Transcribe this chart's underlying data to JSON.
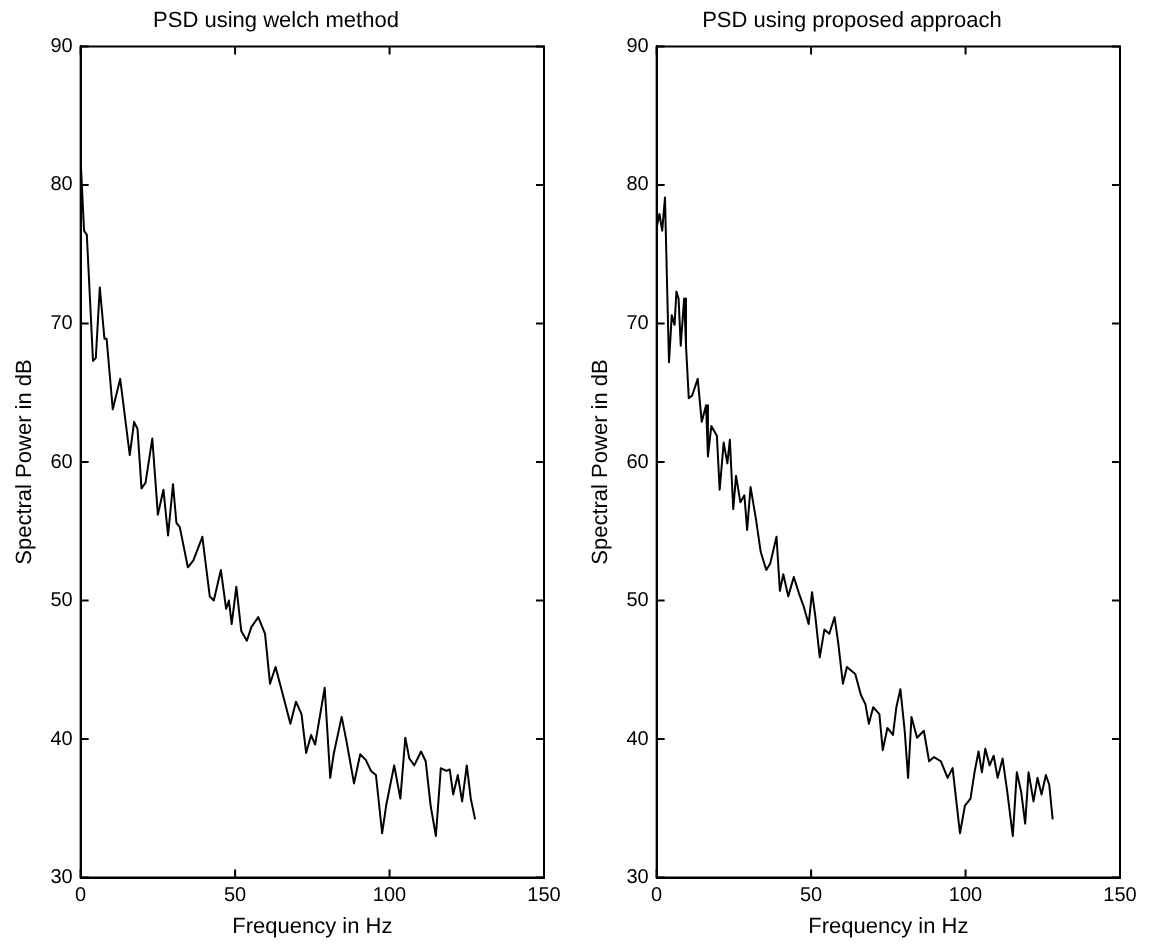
{
  "chart_data": [
    {
      "type": "line",
      "title": "PSD using welch method",
      "xlabel": "Frequency in Hz",
      "ylabel": "Spectral Power in dB",
      "color": "#000000",
      "xlim": [
        0,
        150
      ],
      "ylim": [
        30,
        90
      ],
      "xticks": [
        0,
        50,
        100,
        150
      ],
      "yticks": [
        30,
        40,
        50,
        60,
        70,
        80,
        90
      ],
      "x": [
        0,
        1.1,
        2,
        4,
        4.9,
        6.2,
        7.7,
        8.4,
        10.4,
        12.8,
        15.9,
        17.3,
        18.4,
        19.7,
        21,
        23.2,
        25,
        26.8,
        28.3,
        29.9,
        31,
        32.1,
        34.7,
        36.5,
        39.4,
        41.8,
        43.1,
        45.4,
        47.1,
        48,
        48.9,
        50.4,
        52,
        53.8,
        55.3,
        57.5,
        59.7,
        61.3,
        63.1,
        65.7,
        67.9,
        69.7,
        71.5,
        73,
        74.6,
        75.9,
        79,
        80.8,
        81.9,
        84.5,
        86.1,
        88.5,
        90.5,
        92.3,
        94,
        95.6,
        97.6,
        98.9,
        101.5,
        103.5,
        105.1,
        106.4,
        108,
        110.2,
        111.7,
        113.3,
        115,
        116.6,
        118.4,
        119.5,
        120.6,
        122.1,
        123.5,
        125,
        126.3,
        127.7
      ],
      "values": [
        81.8,
        76.7,
        76.4,
        67.3,
        67.5,
        72.6,
        68.9,
        68.9,
        63.8,
        66,
        60.5,
        62.9,
        62.4,
        58.1,
        58.5,
        61.7,
        56.2,
        58,
        54.7,
        58.4,
        55.6,
        55.3,
        52.4,
        52.9,
        54.6,
        50.3,
        50,
        52.2,
        49.4,
        50,
        48.3,
        51,
        47.8,
        47.1,
        48.1,
        48.8,
        47.6,
        44,
        45.2,
        43,
        41.1,
        42.7,
        41.8,
        39,
        40.3,
        39.6,
        43.7,
        37.2,
        38.9,
        41.6,
        39.8,
        36.8,
        38.9,
        38.5,
        37.7,
        37.4,
        33.2,
        35.2,
        38.1,
        35.7,
        40.1,
        38.6,
        38.1,
        39.1,
        38.4,
        35.2,
        33,
        37.9,
        37.7,
        37.8,
        36,
        37.4,
        35.5,
        38.1,
        35.7,
        34.2
      ]
    },
    {
      "type": "line",
      "title": "PSD using proposed approach",
      "xlabel": "Frequency in Hz",
      "ylabel": "Spectral Power in dB",
      "color": "#000000",
      "xlim": [
        0,
        150
      ],
      "ylim": [
        30,
        90
      ],
      "xticks": [
        0,
        50,
        100,
        150
      ],
      "yticks": [
        30,
        40,
        50,
        60,
        70,
        80,
        90
      ],
      "x": [
        0,
        0.9,
        1.8,
        2.7,
        3.5,
        4,
        4.9,
        5.8,
        6.4,
        7.1,
        7.8,
        8.9,
        9.5,
        10.4,
        11.5,
        13.3,
        14.6,
        16,
        16.6,
        17.7,
        19.5,
        20.4,
        21.7,
        22.9,
        23.7,
        24.8,
        25.7,
        27.1,
        28.4,
        29.3,
        30.4,
        32.2,
        33.7,
        35.5,
        36.8,
        38.8,
        39.9,
        41,
        42.6,
        44.4,
        46.1,
        47.7,
        49.2,
        50.3,
        51.4,
        52.8,
        54.3,
        55.9,
        57.6,
        58.8,
        60.3,
        61.6,
        64.3,
        66.1,
        67.6,
        68.7,
        70.1,
        72.1,
        73.2,
        74.7,
        76.5,
        77.6,
        78.9,
        80.3,
        81.4,
        82.5,
        84.3,
        86.5,
        88.2,
        89.8,
        92,
        94.2,
        95.8,
        98.2,
        99.8,
        101.6,
        102.9,
        104.2,
        105.3,
        106.4,
        107.8,
        109.1,
        110.4,
        112,
        113.5,
        115.3,
        116.6,
        118,
        119.3,
        120.4,
        122,
        123.3,
        124.6,
        126,
        127.1,
        128.2
      ],
      "values": [
        76.9,
        77.9,
        76.7,
        79.1,
        71.6,
        67.2,
        70.6,
        69.9,
        72.3,
        71.8,
        68.4,
        71.8,
        68.4,
        64.6,
        64.8,
        66,
        62.9,
        64.1,
        60.4,
        62.6,
        61.9,
        58,
        61.4,
        59.9,
        61.6,
        56.6,
        59,
        57.1,
        57.6,
        55.1,
        58.2,
        55.8,
        53.5,
        52.2,
        52.7,
        54.6,
        50.7,
        51.9,
        50.3,
        51.7,
        50.5,
        49.5,
        48.3,
        50.6,
        48.8,
        45.9,
        47.9,
        47.6,
        48.8,
        46.9,
        44,
        45.2,
        44.7,
        43.2,
        42.5,
        41.1,
        42.3,
        41.8,
        39.2,
        40.8,
        40.3,
        42.3,
        43.6,
        40.6,
        37.2,
        41.6,
        40.1,
        40.6,
        38.4,
        38.7,
        38.4,
        37.2,
        37.9,
        33.2,
        35.2,
        35.7,
        37.6,
        39.1,
        37.6,
        39.3,
        38.1,
        38.8,
        37.2,
        38.6,
        36.2,
        33,
        37.6,
        36.2,
        33.9,
        37.6,
        35.5,
        37.2,
        36,
        37.4,
        36.7,
        34.2
      ]
    }
  ]
}
